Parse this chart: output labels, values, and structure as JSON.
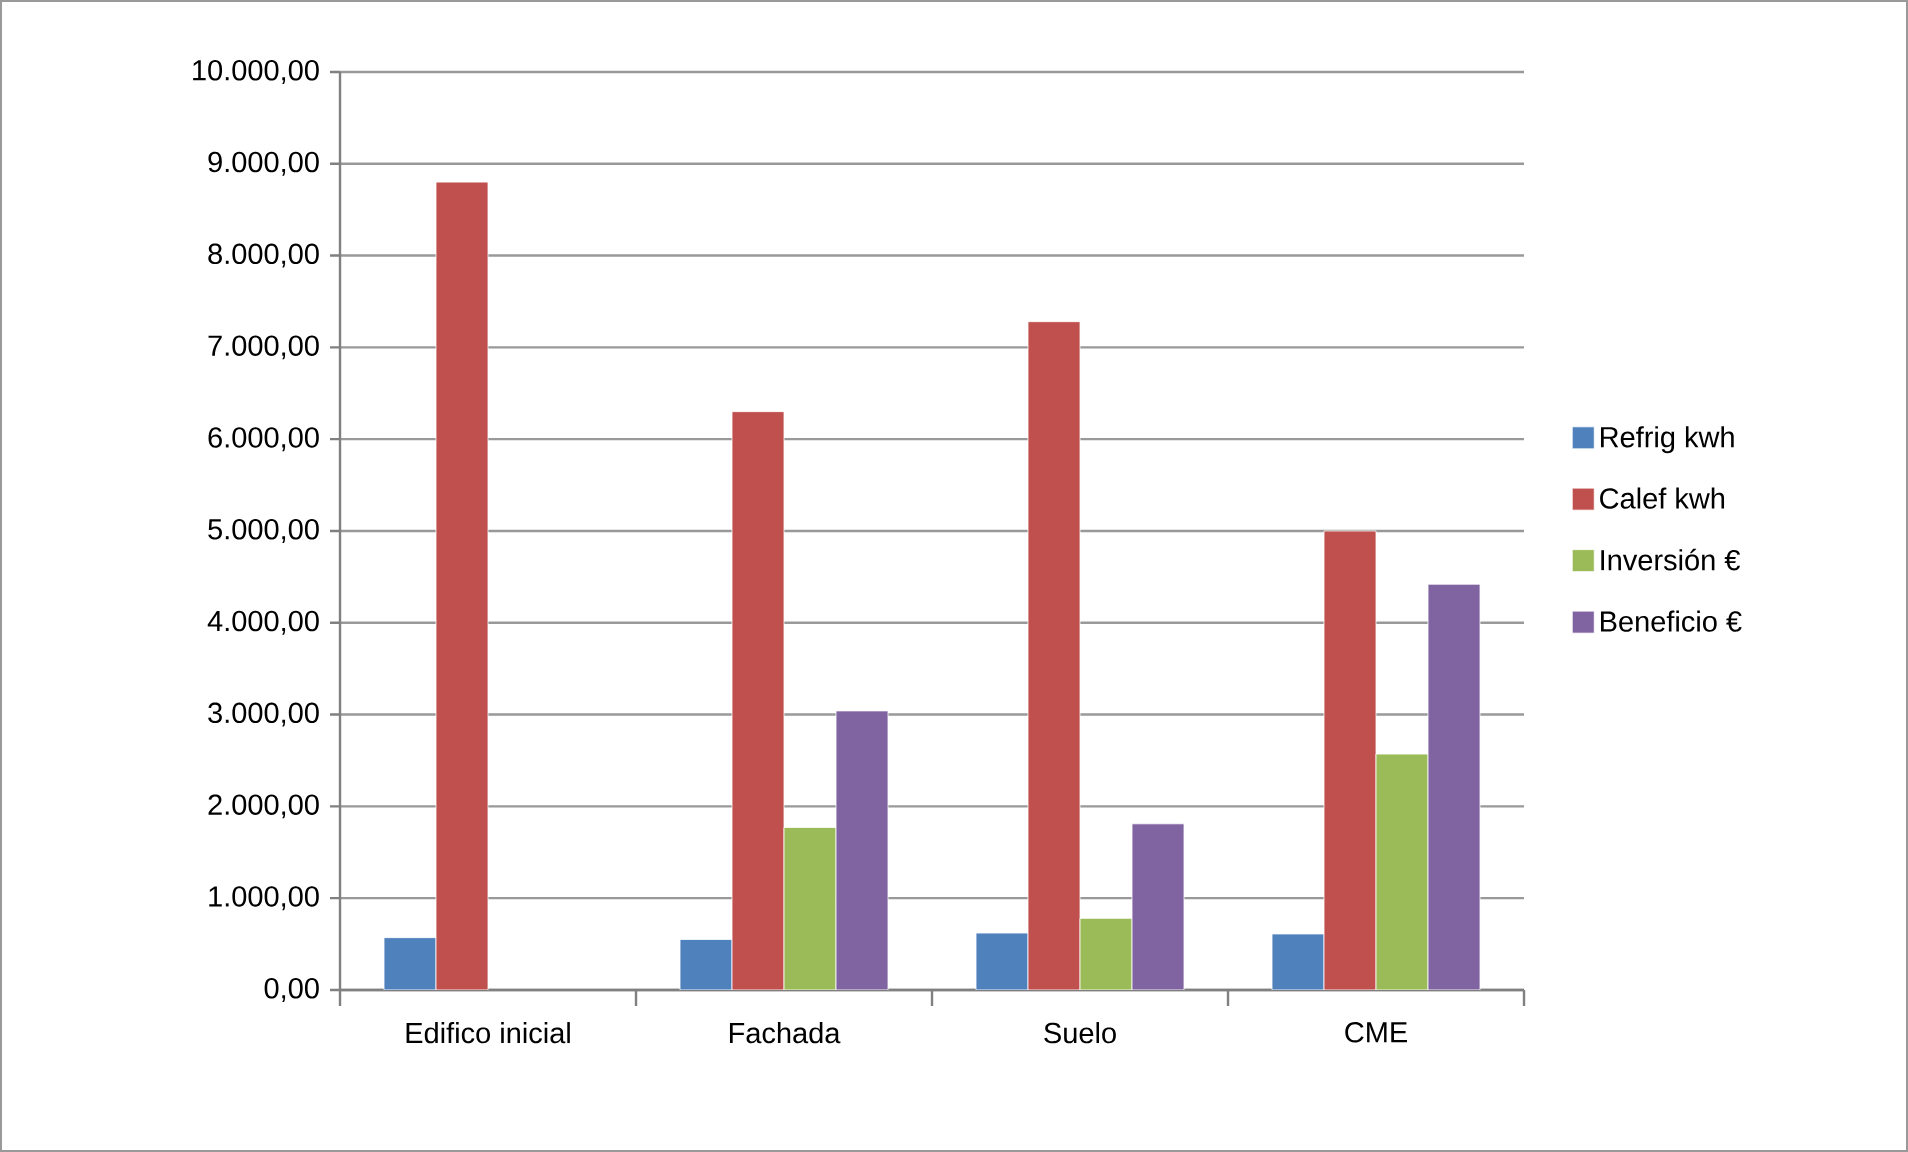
{
  "chart_data": {
    "type": "bar",
    "categories": [
      "Edifico inicial",
      "Fachada",
      "Suelo",
      "CME"
    ],
    "series": [
      {
        "name": "Refrig kwh",
        "color": "#4f81bd",
        "values": [
          570,
          550,
          620,
          610
        ]
      },
      {
        "name": "Calef kwh",
        "color": "#c0504d",
        "values": [
          8800,
          6300,
          7280,
          5000
        ]
      },
      {
        "name": "Inversión €",
        "color": "#9bbb59",
        "values": [
          null,
          1770,
          780,
          2570
        ]
      },
      {
        "name": "Beneficio €",
        "color": "#8064a2",
        "values": [
          null,
          3040,
          1810,
          4420
        ]
      }
    ],
    "ylim": [
      0,
      10000
    ],
    "yticks": [
      {
        "value": 0,
        "label": "0,00"
      },
      {
        "value": 1000,
        "label": "1.000,00"
      },
      {
        "value": 2000,
        "label": "2.000,00"
      },
      {
        "value": 3000,
        "label": "3.000,00"
      },
      {
        "value": 4000,
        "label": "4.000,00"
      },
      {
        "value": 5000,
        "label": "5.000,00"
      },
      {
        "value": 6000,
        "label": "6.000,00"
      },
      {
        "value": 7000,
        "label": "7.000,00"
      },
      {
        "value": 8000,
        "label": "8.000,00"
      },
      {
        "value": 9000,
        "label": "9.000,00"
      },
      {
        "value": 10000,
        "label": "10.000,00"
      }
    ],
    "grid": "y",
    "legend": "right"
  }
}
